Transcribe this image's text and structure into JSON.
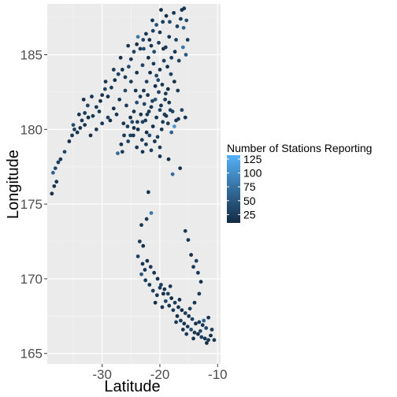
{
  "chart_data": {
    "type": "scatter",
    "xlabel": "Latitude",
    "ylabel": "Longitude",
    "xlim": [
      -39.5,
      -9.5
    ],
    "ylim": [
      164.3,
      188.4
    ],
    "x_ticks": [
      -30,
      -20,
      -10
    ],
    "x_tick_labels": [
      "-30",
      "-20",
      "-10"
    ],
    "y_ticks": [
      165,
      170,
      175,
      180,
      185
    ],
    "y_tick_labels": [
      "165",
      "170",
      "175",
      "180",
      "185"
    ],
    "grid": true,
    "legend": {
      "title": "Number of Stations Reporting",
      "placement": "right",
      "type": "colorbar",
      "range": [
        10,
        132
      ],
      "breaks": [
        25,
        50,
        75,
        100,
        125
      ],
      "break_labels": [
        "25",
        "50",
        "75",
        "100",
        "125"
      ],
      "low_color": "#132B43",
      "high_color": "#56B1F7"
    },
    "colors": {
      "panel": "#EBEBEB",
      "grid_major": "#FFFFFF",
      "grid_minor": "#F5F5F5"
    },
    "points": [
      [
        -38.7,
        175.7,
        15
      ],
      [
        -38.3,
        176.2,
        20
      ],
      [
        -37.9,
        176.5,
        18
      ],
      [
        -38.5,
        177.1,
        60
      ],
      [
        -38.1,
        177.4,
        40
      ],
      [
        -37.6,
        177.8,
        25
      ],
      [
        -37.2,
        178.0,
        20
      ],
      [
        -36.5,
        178.5,
        35
      ],
      [
        -35.7,
        179.2,
        15
      ],
      [
        -35.2,
        179.6,
        25
      ],
      [
        -34.8,
        180.0,
        30
      ],
      [
        -34.3,
        179.8,
        20
      ],
      [
        -33.8,
        180.1,
        15
      ],
      [
        -33.5,
        180.6,
        25
      ],
      [
        -33.0,
        180.3,
        20
      ],
      [
        -32.4,
        180.8,
        15
      ],
      [
        -35.0,
        180.3,
        40
      ],
      [
        -34.0,
        181.0,
        20
      ],
      [
        -33.0,
        181.1,
        25
      ],
      [
        -32.5,
        181.6,
        30
      ],
      [
        -31.6,
        180.9,
        20
      ],
      [
        -31.0,
        181.5,
        25
      ],
      [
        -30.3,
        181.9,
        15
      ],
      [
        -30.0,
        182.3,
        20
      ],
      [
        -29.5,
        182.7,
        35
      ],
      [
        -29.0,
        182.2,
        20
      ],
      [
        -28.4,
        182.8,
        25
      ],
      [
        -27.8,
        183.3,
        15
      ],
      [
        -27.2,
        183.7,
        30
      ],
      [
        -26.5,
        184.0,
        20
      ],
      [
        -26.0,
        183.5,
        25
      ],
      [
        -25.4,
        184.2,
        40
      ],
      [
        -25.0,
        184.7,
        20
      ],
      [
        -24.5,
        185.2,
        30
      ],
      [
        -24.0,
        185.7,
        15
      ],
      [
        -23.4,
        185.4,
        25
      ],
      [
        -22.9,
        186.0,
        35
      ],
      [
        -22.4,
        186.4,
        20
      ],
      [
        -21.8,
        186.0,
        15
      ],
      [
        -21.2,
        186.6,
        30
      ],
      [
        -20.6,
        187.0,
        45
      ],
      [
        -20.0,
        186.5,
        20
      ],
      [
        -19.5,
        187.2,
        25
      ],
      [
        -18.9,
        187.6,
        15
      ],
      [
        -18.3,
        187.2,
        35
      ],
      [
        -17.6,
        187.8,
        20
      ],
      [
        -17.0,
        186.9,
        30
      ],
      [
        -16.4,
        187.4,
        25
      ],
      [
        -15.9,
        186.8,
        60
      ],
      [
        -15.4,
        187.3,
        40
      ],
      [
        -15.8,
        188.1,
        20
      ],
      [
        -16.2,
        188.0,
        15
      ],
      [
        -15.2,
        186.0,
        25
      ],
      [
        -16.0,
        185.5,
        80
      ],
      [
        -15.5,
        185.0,
        50
      ],
      [
        -16.7,
        184.6,
        30
      ],
      [
        -17.4,
        185.2,
        20
      ],
      [
        -18.0,
        184.8,
        25
      ],
      [
        -18.7,
        184.2,
        15
      ],
      [
        -19.3,
        184.6,
        30
      ],
      [
        -20.0,
        184.0,
        20
      ],
      [
        -20.6,
        183.6,
        35
      ],
      [
        -21.1,
        184.4,
        25
      ],
      [
        -21.7,
        183.8,
        15
      ],
      [
        -22.3,
        183.2,
        30
      ],
      [
        -22.8,
        182.6,
        20
      ],
      [
        -23.4,
        182.2,
        25
      ],
      [
        -24.0,
        181.8,
        40
      ],
      [
        -24.5,
        181.2,
        20
      ],
      [
        -25.1,
        180.8,
        15
      ],
      [
        -25.6,
        180.2,
        30
      ],
      [
        -26.2,
        179.6,
        25
      ],
      [
        -26.7,
        179.0,
        20
      ],
      [
        -27.3,
        178.4,
        70
      ],
      [
        -26.5,
        178.5,
        25
      ],
      [
        -25.5,
        179.2,
        35
      ],
      [
        -24.6,
        179.6,
        20
      ],
      [
        -23.8,
        180.0,
        15
      ],
      [
        -23.0,
        180.5,
        30
      ],
      [
        -22.2,
        181.0,
        25
      ],
      [
        -21.5,
        181.5,
        20
      ],
      [
        -20.8,
        182.0,
        50
      ],
      [
        -20.2,
        182.5,
        30
      ],
      [
        -19.6,
        183.0,
        20
      ],
      [
        -19.0,
        182.4,
        25
      ],
      [
        -18.4,
        181.8,
        15
      ],
      [
        -17.8,
        181.2,
        35
      ],
      [
        -17.2,
        180.6,
        20
      ],
      [
        -19.2,
        181.0,
        25
      ],
      [
        -20.0,
        181.3,
        30
      ],
      [
        -20.6,
        180.8,
        20
      ],
      [
        -21.2,
        180.2,
        15
      ],
      [
        -21.8,
        179.6,
        40
      ],
      [
        -22.4,
        179.0,
        25
      ],
      [
        -23.0,
        178.5,
        20
      ],
      [
        -20.4,
        179.5,
        30
      ],
      [
        -19.7,
        180.0,
        20
      ],
      [
        -18.6,
        180.4,
        25
      ],
      [
        -18.0,
        179.8,
        60
      ],
      [
        -17.5,
        180.2,
        110
      ],
      [
        -16.8,
        180.7,
        20
      ],
      [
        -16.2,
        181.3,
        35
      ],
      [
        -15.6,
        180.8,
        20
      ],
      [
        -16.9,
        182.6,
        25
      ],
      [
        -17.5,
        183.2,
        15
      ],
      [
        -18.1,
        183.7,
        30
      ],
      [
        -19.4,
        185.4,
        20
      ],
      [
        -20.2,
        185.8,
        25
      ],
      [
        -21.0,
        185.2,
        40
      ],
      [
        -22.0,
        184.8,
        15
      ],
      [
        -23.0,
        184.3,
        30
      ],
      [
        -24.0,
        183.8,
        20
      ],
      [
        -25.0,
        183.2,
        25
      ],
      [
        -26.0,
        182.6,
        35
      ],
      [
        -27.0,
        182.0,
        20
      ],
      [
        -28.0,
        181.4,
        15
      ],
      [
        -29.0,
        180.8,
        30
      ],
      [
        -30.0,
        180.4,
        20
      ],
      [
        -31.0,
        180.0,
        25
      ],
      [
        -32.0,
        179.6,
        15
      ],
      [
        -22.5,
        180.6,
        25
      ],
      [
        -21.9,
        181.2,
        20
      ],
      [
        -21.3,
        181.9,
        30
      ],
      [
        -20.8,
        182.9,
        15
      ],
      [
        -20.3,
        183.3,
        40
      ],
      [
        -19.8,
        181.6,
        20
      ],
      [
        -19.1,
        182.0,
        25
      ],
      [
        -18.6,
        182.7,
        15
      ],
      [
        -18.2,
        181.3,
        30
      ],
      [
        -18.9,
        180.9,
        20
      ],
      [
        -19.5,
        180.5,
        25
      ],
      [
        -22.1,
        182.3,
        20
      ],
      [
        -22.7,
        181.7,
        35
      ],
      [
        -23.3,
        181.0,
        20
      ],
      [
        -23.9,
        180.5,
        25
      ],
      [
        -24.5,
        180.1,
        15
      ],
      [
        -25.1,
        179.6,
        30
      ],
      [
        -24.0,
        178.8,
        20
      ],
      [
        -23.1,
        179.3,
        25
      ],
      [
        -22.3,
        179.8,
        15
      ],
      [
        -20.9,
        179.2,
        20
      ],
      [
        -20.0,
        178.8,
        25
      ],
      [
        -21.5,
        178.6,
        30
      ],
      [
        -18.5,
        178.0,
        15
      ],
      [
        -20.0,
        178.2,
        20
      ],
      [
        -17.8,
        177.0,
        70
      ],
      [
        -16.5,
        177.4,
        20
      ],
      [
        -23.8,
        186.2,
        80
      ],
      [
        -22.8,
        185.4,
        40
      ],
      [
        -21.5,
        185.6,
        20
      ],
      [
        -19.8,
        188.0,
        15
      ],
      [
        -21.3,
        187.3,
        20
      ],
      [
        -24.2,
        182.6,
        20
      ],
      [
        -25.8,
        181.6,
        25
      ],
      [
        -27.5,
        181.0,
        20
      ],
      [
        -28.6,
        180.6,
        15
      ],
      [
        -24.8,
        180.5,
        35
      ],
      [
        -26.3,
        180.4,
        20
      ],
      [
        -30.5,
        181.2,
        25
      ],
      [
        -31.8,
        182.2,
        20
      ],
      [
        -33.2,
        182.0,
        15
      ],
      [
        -29.4,
        183.2,
        20
      ],
      [
        -28.0,
        184.0,
        25
      ],
      [
        -26.8,
        184.8,
        15
      ],
      [
        -25.5,
        185.6,
        20
      ],
      [
        -19.0,
        185.5,
        25
      ],
      [
        -18.4,
        186.2,
        20
      ],
      [
        -17.2,
        186.0,
        30
      ],
      [
        -22.0,
        175.8,
        20
      ],
      [
        -21.5,
        174.4,
        80
      ],
      [
        -22.3,
        174.0,
        25
      ],
      [
        -23.2,
        173.6,
        20
      ],
      [
        -23.5,
        172.5,
        25
      ],
      [
        -22.9,
        172.2,
        15
      ],
      [
        -23.8,
        171.5,
        30
      ],
      [
        -23.0,
        171.0,
        20
      ],
      [
        -23.2,
        170.3,
        50
      ],
      [
        -22.5,
        169.9,
        25
      ],
      [
        -21.8,
        169.6,
        20
      ],
      [
        -21.2,
        169.2,
        30
      ],
      [
        -20.5,
        168.9,
        20
      ],
      [
        -20.0,
        169.4,
        25
      ],
      [
        -19.4,
        169.0,
        15
      ],
      [
        -19.0,
        168.5,
        35
      ],
      [
        -18.4,
        168.2,
        20
      ],
      [
        -17.7,
        167.9,
        25
      ],
      [
        -17.0,
        167.5,
        15
      ],
      [
        -16.4,
        167.2,
        30
      ],
      [
        -15.8,
        167.0,
        20
      ],
      [
        -15.2,
        166.8,
        25
      ],
      [
        -14.6,
        166.6,
        40
      ],
      [
        -14.0,
        166.4,
        20
      ],
      [
        -13.4,
        166.3,
        15
      ],
      [
        -12.8,
        166.1,
        30
      ],
      [
        -12.2,
        166.0,
        20
      ],
      [
        -11.6,
        165.9,
        25
      ],
      [
        -11.2,
        166.2,
        15
      ],
      [
        -12.0,
        166.7,
        35
      ],
      [
        -12.6,
        166.9,
        20
      ],
      [
        -13.2,
        167.1,
        25
      ],
      [
        -13.8,
        167.0,
        15
      ],
      [
        -14.4,
        167.3,
        30
      ],
      [
        -15.0,
        167.5,
        20
      ],
      [
        -15.6,
        167.7,
        25
      ],
      [
        -16.2,
        167.9,
        15
      ],
      [
        -16.8,
        168.1,
        20
      ],
      [
        -17.4,
        168.4,
        25
      ],
      [
        -18.0,
        168.7,
        15
      ],
      [
        -18.6,
        169.0,
        30
      ],
      [
        -19.2,
        169.3,
        20
      ],
      [
        -19.8,
        169.6,
        25
      ],
      [
        -20.4,
        170.0,
        15
      ],
      [
        -21.0,
        170.4,
        20
      ],
      [
        -21.6,
        170.8,
        25
      ],
      [
        -22.2,
        171.2,
        15
      ],
      [
        -14.8,
        168.0,
        30
      ],
      [
        -14.0,
        168.4,
        20
      ],
      [
        -13.2,
        169.0,
        25
      ],
      [
        -12.9,
        169.8,
        15
      ],
      [
        -13.4,
        170.4,
        20
      ],
      [
        -14.2,
        170.8,
        25
      ],
      [
        -14.6,
        171.6,
        15
      ],
      [
        -15.1,
        172.6,
        20
      ],
      [
        -15.6,
        173.2,
        25
      ],
      [
        -13.7,
        171.2,
        30
      ],
      [
        -11.6,
        167.4,
        20
      ],
      [
        -11.0,
        166.6,
        25
      ],
      [
        -12.4,
        167.2,
        60
      ],
      [
        -13.0,
        166.5,
        35
      ],
      [
        -14.2,
        166.0,
        20
      ],
      [
        -15.4,
        166.3,
        25
      ],
      [
        -10.6,
        165.9,
        20
      ],
      [
        -11.9,
        165.7,
        15
      ],
      [
        -22.6,
        170.6,
        20
      ],
      [
        -18.2,
        169.5,
        25
      ],
      [
        -16.6,
        168.6,
        20
      ],
      [
        -20.8,
        168.4,
        15
      ],
      [
        -19.6,
        168.1,
        20
      ],
      [
        -17.2,
        167.1,
        25
      ],
      [
        -16.0,
        166.6,
        20
      ]
    ]
  }
}
